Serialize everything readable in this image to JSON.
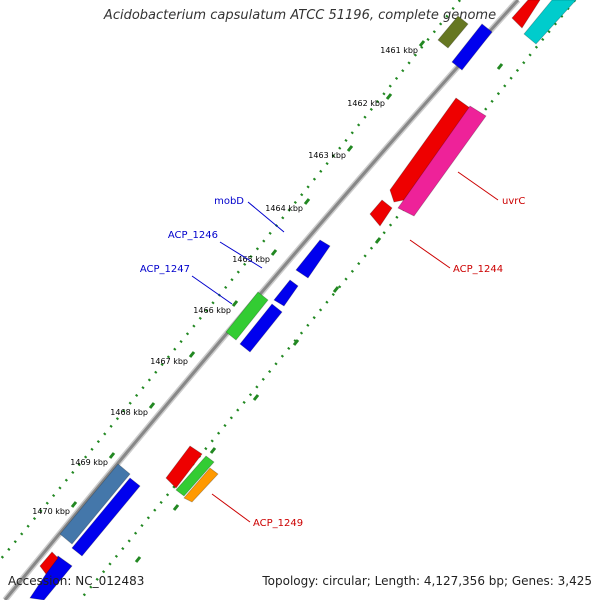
{
  "title": "Acidobacterium capsulatum ATCC 51196, complete genome",
  "footer": {
    "accession": "Accession: NC_012483",
    "summary": "Topology: circular; Length: 4,127,356 bp; Genes: 3,425"
  },
  "colors": {
    "backbone": "#888888",
    "tick": "#228822",
    "label_forward": "#0000cc",
    "label_reverse": "#cc0000",
    "gene_blue": "#0000ee",
    "gene_red": "#ee0000",
    "gene_green": "#33cc33",
    "gene_magenta": "#ee2299",
    "gene_orange": "#ff9900",
    "gene_steel": "#4477aa",
    "gene_olive": "#667722",
    "gene_cyan": "#00cccc"
  },
  "ticks": [
    "1461 kbp",
    "1462 kbp",
    "1463 kbp",
    "1464 kbp",
    "1465 kbp",
    "1466 kbp",
    "1467 kbp",
    "1468 kbp",
    "1469 kbp",
    "1470 kbp"
  ],
  "gene_labels": [
    {
      "name": "mobD",
      "strand": "forward"
    },
    {
      "name": "ACP_1246",
      "strand": "forward"
    },
    {
      "name": "ACP_1247",
      "strand": "forward"
    },
    {
      "name": "uvrC",
      "strand": "reverse"
    },
    {
      "name": "ACP_1244",
      "strand": "reverse"
    },
    {
      "name": "ACP_1249",
      "strand": "reverse"
    }
  ]
}
